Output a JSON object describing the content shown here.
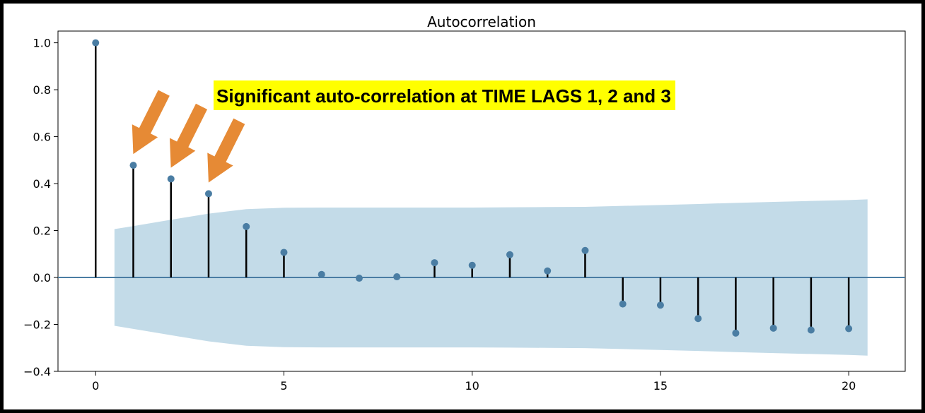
{
  "chart_data": {
    "type": "stem",
    "title": "Autocorrelation",
    "xlabel": "",
    "ylabel": "",
    "xlim": [
      -1,
      21.5
    ],
    "ylim": [
      -0.4,
      1.05
    ],
    "x_ticks": [
      0,
      5,
      10,
      15,
      20
    ],
    "x_tick_labels": [
      "0",
      "5",
      "10",
      "15",
      "20"
    ],
    "y_ticks": [
      -0.4,
      -0.2,
      0.0,
      0.2,
      0.4,
      0.6,
      0.8,
      1.0
    ],
    "y_tick_labels": [
      "−0.4",
      "−0.2",
      "0.0",
      "0.2",
      "0.4",
      "0.6",
      "0.8",
      "1.0"
    ],
    "grid": false,
    "lags": [
      0,
      1,
      2,
      3,
      4,
      5,
      6,
      7,
      8,
      9,
      10,
      11,
      12,
      13,
      14,
      15,
      16,
      17,
      18,
      19,
      20
    ],
    "values": [
      1.0,
      0.478,
      0.42,
      0.357,
      0.217,
      0.107,
      0.013,
      -0.003,
      0.003,
      0.063,
      0.052,
      0.097,
      0.028,
      0.115,
      -0.113,
      -0.118,
      -0.175,
      -0.237,
      -0.216,
      -0.224,
      -0.218
    ],
    "confidence_band": {
      "x": [
        0.5,
        1,
        2,
        3,
        4,
        5,
        6,
        7,
        8,
        9,
        10,
        11,
        12,
        13,
        14,
        15,
        16,
        17,
        18,
        19,
        20,
        20.5
      ],
      "upper": [
        0.206,
        0.219,
        0.246,
        0.272,
        0.291,
        0.297,
        0.298,
        0.298,
        0.298,
        0.298,
        0.298,
        0.299,
        0.3,
        0.301,
        0.305,
        0.309,
        0.313,
        0.318,
        0.322,
        0.326,
        0.33,
        0.333
      ],
      "lower": [
        -0.206,
        -0.219,
        -0.246,
        -0.272,
        -0.291,
        -0.297,
        -0.298,
        -0.298,
        -0.298,
        -0.298,
        -0.298,
        -0.299,
        -0.3,
        -0.301,
        -0.305,
        -0.309,
        -0.313,
        -0.318,
        -0.322,
        -0.326,
        -0.33,
        -0.333
      ]
    },
    "annotation": {
      "text": "Significant auto-correlation at TIME LAGS 1, 2 and 3",
      "highlight_lags": [
        1,
        2,
        3
      ]
    }
  },
  "colors": {
    "marker": "#4a7da3",
    "stem": "#000000",
    "band": "#c3dbe8",
    "zero_line": "#4a7da3",
    "arrow": "#e68a35",
    "highlight": "#ffff00",
    "frame": "#000000"
  }
}
